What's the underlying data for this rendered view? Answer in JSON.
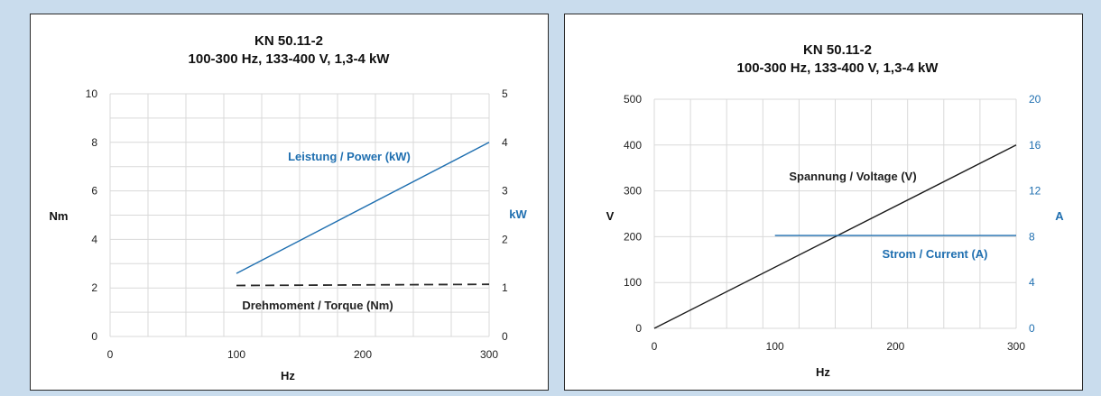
{
  "colors": {
    "power": "#1f6fb0",
    "torque": "#2a2a2a",
    "voltage": "#1a1a1a",
    "current": "#1f6fb0",
    "grid": "#d9d9d9"
  },
  "chart_data": [
    {
      "type": "line",
      "title": "KN 50.11-2",
      "subtitle": "100-300 Hz, 133-400 V, 1,3-4 kW",
      "xlabel": "Hz",
      "ylabel": "Nm",
      "y2label": "kW",
      "xlim": [
        0,
        300
      ],
      "xticks": [
        0,
        100,
        200,
        300
      ],
      "ylim": [
        0,
        10
      ],
      "yticks": [
        0,
        2,
        4,
        6,
        8,
        10
      ],
      "y2lim": [
        0,
        5
      ],
      "y2ticks": [
        0,
        1,
        2,
        3,
        4,
        5
      ],
      "grid": true,
      "series": [
        {
          "name": "Leistung / Power (kW)",
          "axis": "right",
          "style": "solid",
          "x": [
            100,
            300
          ],
          "y": [
            1.3,
            4.0
          ]
        },
        {
          "name": "Drehmoment / Torque (Nm)",
          "axis": "left",
          "style": "dashed",
          "x": [
            100,
            300
          ],
          "y": [
            2.1,
            2.15
          ]
        }
      ]
    },
    {
      "type": "line",
      "title": "KN 50.11-2",
      "subtitle": "100-300 Hz, 133-400 V, 1,3-4 kW",
      "xlabel": "Hz",
      "ylabel": "V",
      "y2label": "A",
      "xlim": [
        0,
        300
      ],
      "xticks": [
        0,
        100,
        200,
        300
      ],
      "ylim": [
        0,
        500
      ],
      "yticks": [
        0,
        100,
        200,
        300,
        400,
        500
      ],
      "y2lim": [
        0,
        20
      ],
      "y2ticks": [
        0,
        4,
        8,
        12,
        16,
        20
      ],
      "grid": true,
      "series": [
        {
          "name": "Spannung / Voltage (V)",
          "axis": "left",
          "style": "solid",
          "x": [
            0,
            300
          ],
          "y": [
            0,
            400
          ]
        },
        {
          "name": "Strom / Current (A)",
          "axis": "right",
          "style": "solid",
          "x": [
            100,
            300
          ],
          "y": [
            8.1,
            8.1
          ]
        }
      ]
    }
  ]
}
